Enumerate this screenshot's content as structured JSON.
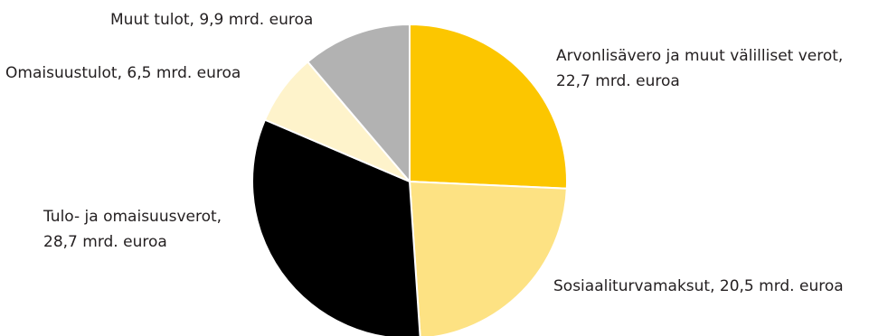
{
  "chart_data": {
    "type": "pie",
    "title": "",
    "unit": "mrd. euroa",
    "start": "top, clockwise",
    "slices": [
      {
        "label": "Arvonlisävero ja muut välilliset verot",
        "value": 22.7,
        "color": "#fcc600",
        "text_lines": [
          "Arvonlisävero ja muut välilliset verot,",
          "22,7 mrd. euroa"
        ]
      },
      {
        "label": "Sosiaaliturvamaksut",
        "value": 20.5,
        "color": "#fde283",
        "text_lines": [
          "Sosiaaliturvamaksut, 20,5 mrd. euroa"
        ]
      },
      {
        "label": "Tulo- ja omaisuusverot",
        "value": 28.7,
        "color": "#000000",
        "text_lines": [
          "Tulo- ja omaisuusverot,",
          "28,7 mrd. euroa"
        ]
      },
      {
        "label": "Omaisuustulot",
        "value": 6.5,
        "color": "#fef3cb",
        "text_lines": [
          "Omaisuustulot, 6,5 mrd. euroa"
        ]
      },
      {
        "label": "Muut tulot",
        "value": 9.9,
        "color": "#b2b2b2",
        "text_lines": [
          "Muut tulot, 9,9 mrd. euroa"
        ]
      }
    ]
  }
}
